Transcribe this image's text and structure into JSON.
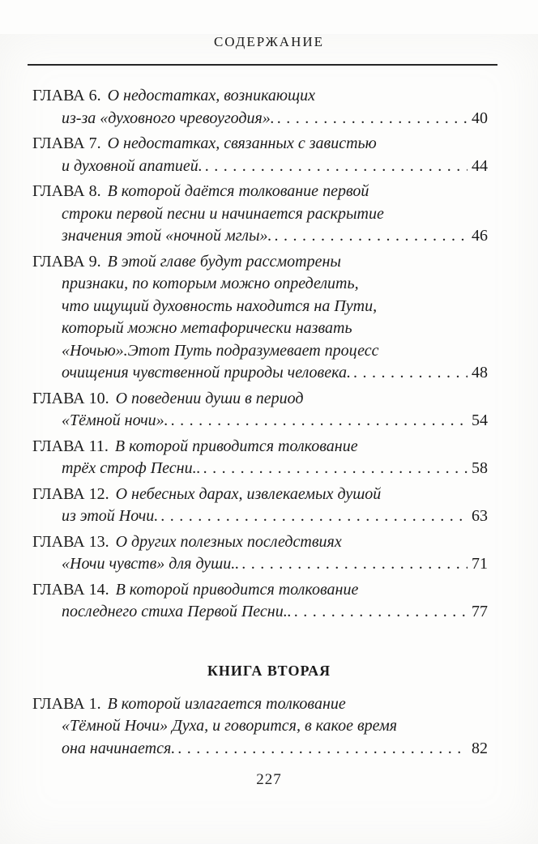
{
  "header_title": "СОДЕРЖАНИЕ",
  "book_two_heading": "КНИГА ВТОРАЯ",
  "folio": "227",
  "entries_book1": [
    {
      "label": "ГЛАВА 6.",
      "first_line": "О недостатках, возникающих",
      "middle_lines": [],
      "last_line": "из-за «духовного чревоугодия».",
      "page": "40"
    },
    {
      "label": "ГЛАВА 7.",
      "first_line": "О недостатках, связанных с завистью",
      "middle_lines": [],
      "last_line": "и духовной апатией.",
      "page": "44"
    },
    {
      "label": "ГЛАВА 8.",
      "first_line": "В которой даётся толкование первой",
      "middle_lines": [
        "строки первой песни и начинается раскрытие"
      ],
      "last_line": "значения этой «ночной мглы».",
      "page": "46"
    },
    {
      "label": "ГЛАВА 9.",
      "first_line": "В этой главе будут рассмотрены",
      "middle_lines": [
        "признаки, по которым можно определить,",
        "что ищущий духовность находится на Пути,",
        "который можно метафорически назвать",
        "«Ночью».Этот Путь подразумевает процесс"
      ],
      "last_line": "очищения чувственной природы человека.",
      "page": "48"
    },
    {
      "label": "ГЛАВА 10.",
      "first_line": "О поведении души в период",
      "middle_lines": [],
      "last_line": "«Тёмной ночи».",
      "page": "54"
    },
    {
      "label": "ГЛАВА 11.",
      "first_line": "В которой приводится толкование",
      "middle_lines": [],
      "last_line": "трёх строф Песни..",
      "page": "58"
    },
    {
      "label": "ГЛАВА 12.",
      "first_line": "О небесных дарах, извлекаемых душой",
      "middle_lines": [],
      "last_line": "из этой Ночи.",
      "page": "63"
    },
    {
      "label": "ГЛАВА 13.",
      "first_line": "О других полезных последствиях",
      "middle_lines": [],
      "last_line": "«Ночи чувств» для души..",
      "page": "71"
    },
    {
      "label": "ГЛАВА 14.",
      "first_line": "В которой приводится толкование",
      "middle_lines": [],
      "last_line": "последнего стиха Первой Песни..",
      "page": "77"
    }
  ],
  "entries_book2": [
    {
      "label": "ГЛАВА 1.",
      "first_line": "В которой излагается толкование",
      "middle_lines": [
        "«Тёмной Ночи» Духа, и говорится, в какое время"
      ],
      "last_line": "она начинается.",
      "page": "82"
    }
  ]
}
